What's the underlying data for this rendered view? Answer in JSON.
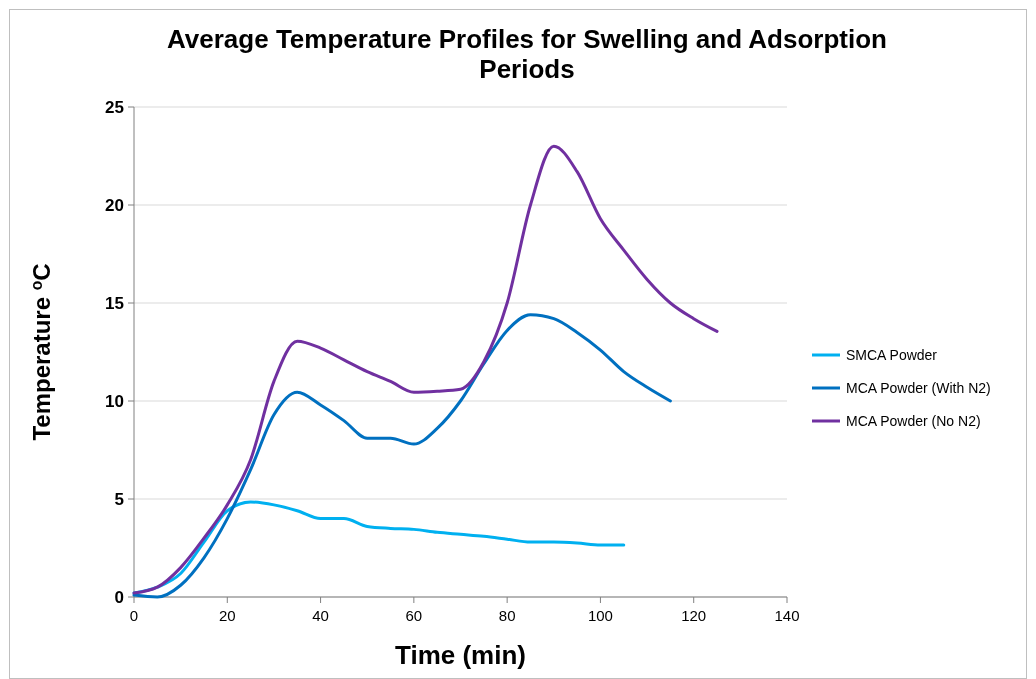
{
  "chart_data": {
    "type": "line",
    "title": "Average Temperature Profiles for Swelling and Adsorption Periods",
    "xlabel": "Time (min)",
    "ylabel": "Temperature $^{o}$C",
    "x": [
      0,
      5,
      10,
      15,
      20,
      25,
      30,
      35,
      40,
      45,
      50,
      55,
      60,
      65,
      70,
      75,
      80,
      85,
      90,
      95,
      100,
      105,
      110,
      115,
      120,
      125
    ],
    "series": [
      {
        "name": "SMCA Powder",
        "color": "#00b0f0",
        "values": [
          0.2,
          0.5,
          1.2,
          2.8,
          4.4,
          4.85,
          4.7,
          4.4,
          4.0,
          4.0,
          3.6,
          3.5,
          3.45,
          3.3,
          3.2,
          3.1,
          2.95,
          2.8,
          2.8,
          2.75,
          2.65,
          2.65,
          null,
          null,
          null,
          null
        ]
      },
      {
        "name": "MCA Powder (With N2)",
        "color": "#0070c0",
        "values": [
          0.1,
          0,
          0.6,
          2.0,
          4.0,
          6.5,
          9.3,
          10.45,
          9.8,
          9.0,
          8.1,
          8.1,
          7.8,
          8.6,
          10.0,
          11.9,
          13.6,
          14.4,
          14.2,
          13.5,
          12.6,
          11.5,
          10.7,
          10.0,
          null,
          null
        ]
      },
      {
        "name": "MCA Powder (No N2)",
        "color": "#7030a0",
        "values": [
          0.2,
          0.5,
          1.5,
          3.0,
          4.7,
          7.0,
          11.0,
          13.05,
          12.7,
          12.1,
          11.5,
          11.0,
          10.45,
          10.5,
          10.6,
          12.0,
          15.0,
          20.0,
          23.0,
          21.7,
          19.3,
          17.7,
          16.2,
          15.0,
          14.2,
          13.55
        ]
      }
    ],
    "xlim": [
      0,
      140
    ],
    "xticks": [
      0,
      20,
      40,
      60,
      80,
      100,
      120,
      140
    ],
    "ylim": [
      0,
      25
    ],
    "yticks": [
      0,
      5,
      10,
      15,
      20,
      25
    ],
    "grid": "y",
    "legend": "right",
    "marker": "none",
    "line_style": "solid"
  }
}
